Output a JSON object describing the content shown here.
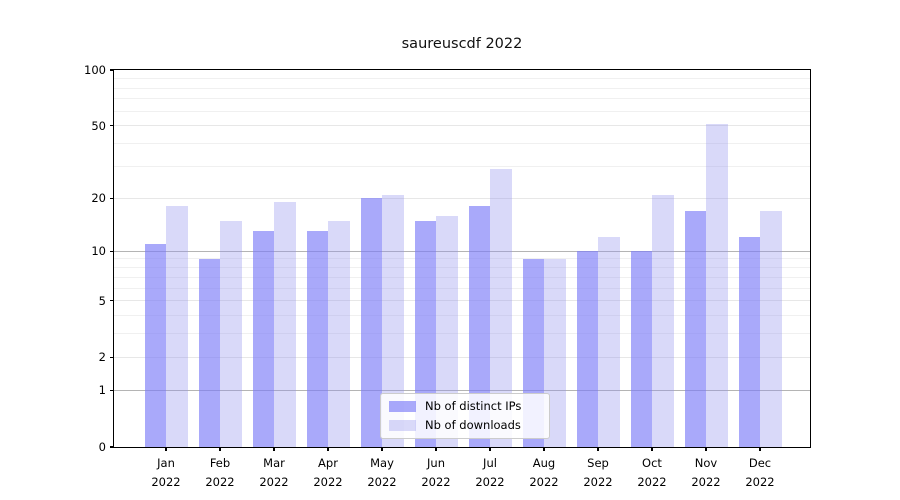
{
  "title": "saureuscdf 2022",
  "chart_data": {
    "type": "bar",
    "title": "saureuscdf 2022",
    "categories": [
      "Jan",
      "Feb",
      "Mar",
      "Apr",
      "May",
      "Jun",
      "Jul",
      "Aug",
      "Sep",
      "Oct",
      "Nov",
      "Dec"
    ],
    "year_label": "2022",
    "series": [
      {
        "name": "Nb of distinct IPs",
        "color": "rgba(124,124,248,0.66)",
        "values": [
          11,
          9,
          13,
          13,
          20,
          15,
          18,
          9,
          10,
          10,
          17,
          12
        ]
      },
      {
        "name": "Nb of downloads",
        "color": "rgba(146,146,238,0.35)",
        "values": [
          18,
          15,
          19,
          15,
          21,
          16,
          29,
          9,
          12,
          21,
          51,
          17
        ]
      }
    ],
    "xlabel": "",
    "ylabel": "",
    "ylim": [
      0,
      100
    ],
    "y_ticks": [
      0,
      1,
      2,
      5,
      10,
      20,
      50,
      100
    ],
    "y_major_gridline_values": [
      1,
      10,
      100
    ],
    "y_minor_gridline_values": [
      3,
      4,
      6,
      7,
      8,
      9,
      30,
      40,
      60,
      70,
      80,
      90
    ],
    "scale": "log(value+1)",
    "grid": true,
    "legend_position": "bottom-center"
  }
}
